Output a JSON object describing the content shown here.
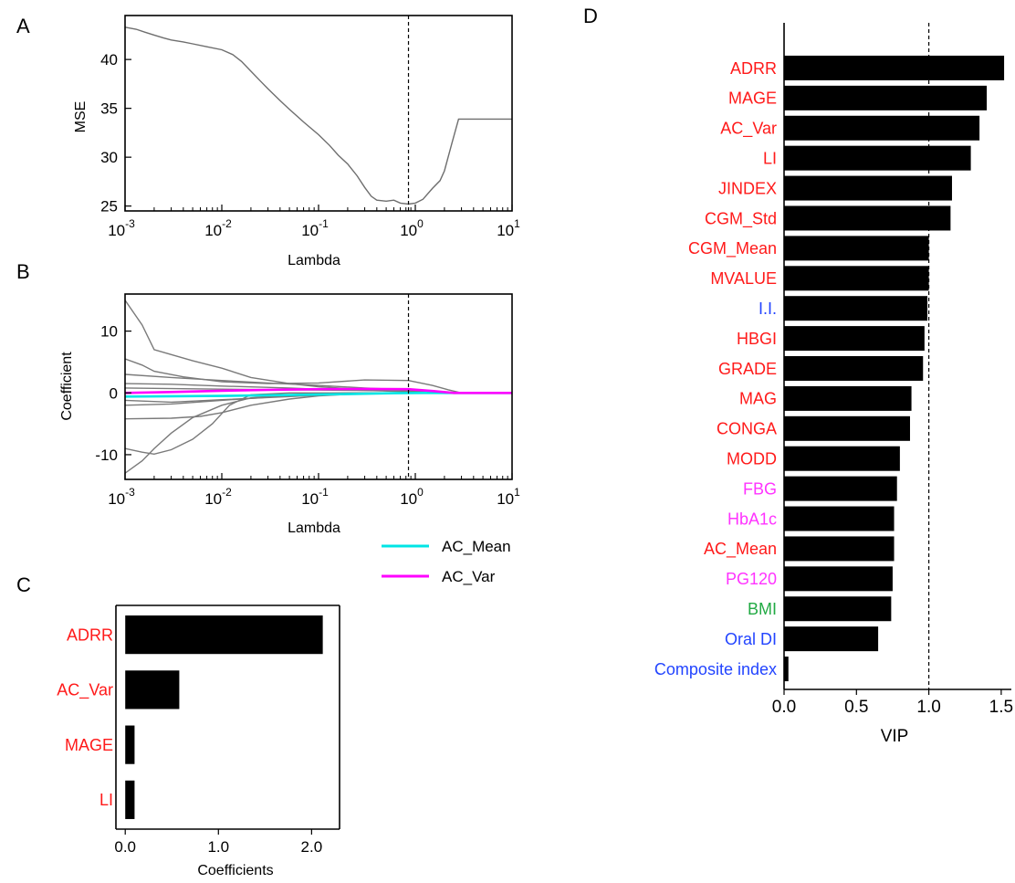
{
  "panels": {
    "A": {
      "letter": "A",
      "chart_data": {
        "type": "line",
        "xlabel": "Lambda",
        "ylabel": "MSE",
        "xscale": "log",
        "xlim": [
          0.001,
          10
        ],
        "ylim": [
          24.5,
          44.5
        ],
        "x_tick_exponents": [
          "-3",
          "-2",
          "-1",
          "0",
          "1"
        ],
        "y_ticks": [
          25,
          30,
          35,
          40
        ],
        "vline": 0.85,
        "series": [
          {
            "color": "#6e6e6e",
            "points": [
              [
                0.001,
                43.3
              ],
              [
                0.0013,
                43.1
              ],
              [
                0.0016,
                42.8
              ],
              [
                0.002,
                42.5
              ],
              [
                0.0025,
                42.2
              ],
              [
                0.003,
                42.0
              ],
              [
                0.004,
                41.8
              ],
              [
                0.005,
                41.6
              ],
              [
                0.007,
                41.3
              ],
              [
                0.01,
                41.0
              ],
              [
                0.013,
                40.5
              ],
              [
                0.016,
                39.8
              ],
              [
                0.02,
                38.8
              ],
              [
                0.025,
                37.8
              ],
              [
                0.03,
                37.0
              ],
              [
                0.04,
                35.8
              ],
              [
                0.05,
                34.9
              ],
              [
                0.07,
                33.6
              ],
              [
                0.1,
                32.3
              ],
              [
                0.13,
                31.2
              ],
              [
                0.16,
                30.2
              ],
              [
                0.2,
                29.3
              ],
              [
                0.25,
                28.1
              ],
              [
                0.3,
                26.9
              ],
              [
                0.35,
                26.0
              ],
              [
                0.4,
                25.6
              ],
              [
                0.5,
                25.5
              ],
              [
                0.6,
                25.6
              ],
              [
                0.7,
                25.3
              ],
              [
                0.85,
                25.2
              ],
              [
                1.0,
                25.3
              ],
              [
                1.2,
                25.7
              ],
              [
                1.5,
                26.8
              ],
              [
                1.8,
                27.6
              ],
              [
                2.0,
                28.6
              ],
              [
                2.4,
                31.5
              ],
              [
                2.8,
                33.9
              ],
              [
                3.5,
                33.9
              ],
              [
                5.0,
                33.9
              ],
              [
                10,
                33.9
              ]
            ]
          }
        ]
      }
    },
    "B": {
      "letter": "B",
      "chart_data": {
        "type": "line",
        "xlabel": "Lambda",
        "ylabel": "Coefficient",
        "xscale": "log",
        "xlim": [
          0.001,
          10
        ],
        "ylim": [
          -14,
          16
        ],
        "x_tick_exponents": [
          "-3",
          "-2",
          "-1",
          "0",
          "1"
        ],
        "y_ticks": [
          -10,
          0,
          10
        ],
        "vline": 0.85,
        "legend_position": "below-right",
        "series": [
          {
            "color": "#7a7a7a",
            "points": [
              [
                0.001,
                15
              ],
              [
                0.0015,
                11
              ],
              [
                0.002,
                7
              ],
              [
                0.003,
                6.2
              ],
              [
                0.005,
                5.2
              ],
              [
                0.01,
                4.0
              ],
              [
                0.02,
                2.5
              ],
              [
                0.05,
                1.5
              ],
              [
                0.1,
                1.0
              ],
              [
                0.3,
                0.5
              ],
              [
                0.85,
                0.2
              ],
              [
                2,
                0
              ],
              [
                10,
                0
              ]
            ]
          },
          {
            "color": "#7a7a7a",
            "points": [
              [
                0.001,
                -13
              ],
              [
                0.0015,
                -11
              ],
              [
                0.002,
                -9
              ],
              [
                0.003,
                -6.5
              ],
              [
                0.005,
                -4
              ],
              [
                0.01,
                -2
              ],
              [
                0.02,
                -0.8
              ],
              [
                0.05,
                -0.3
              ],
              [
                0.1,
                -0.1
              ],
              [
                0.2,
                0
              ],
              [
                10,
                0
              ]
            ]
          },
          {
            "color": "#7a7a7a",
            "points": [
              [
                0.001,
                -9
              ],
              [
                0.0015,
                -9.6
              ],
              [
                0.002,
                -9.9
              ],
              [
                0.003,
                -9.2
              ],
              [
                0.005,
                -7.5
              ],
              [
                0.008,
                -5
              ],
              [
                0.012,
                -2
              ],
              [
                0.02,
                -0.3
              ],
              [
                0.05,
                0
              ],
              [
                10,
                0
              ]
            ]
          },
          {
            "color": "#7a7a7a",
            "points": [
              [
                0.001,
                5.5
              ],
              [
                0.0015,
                4.5
              ],
              [
                0.002,
                3.5
              ],
              [
                0.004,
                2.6
              ],
              [
                0.01,
                1.8
              ],
              [
                0.03,
                1.5
              ],
              [
                0.1,
                1.6
              ],
              [
                0.3,
                2.1
              ],
              [
                0.85,
                2.0
              ],
              [
                1.5,
                1.2
              ],
              [
                2.2,
                0.5
              ],
              [
                3,
                0
              ],
              [
                10,
                0
              ]
            ]
          },
          {
            "color": "#7a7a7a",
            "points": [
              [
                0.001,
                3
              ],
              [
                0.003,
                2.5
              ],
              [
                0.01,
                2.0
              ],
              [
                0.03,
                1.6
              ],
              [
                0.1,
                1.2
              ],
              [
                0.3,
                0.8
              ],
              [
                0.85,
                0.5
              ],
              [
                1.5,
                0.1
              ],
              [
                2,
                0
              ],
              [
                10,
                0
              ]
            ]
          },
          {
            "color": "#7a7a7a",
            "points": [
              [
                0.001,
                -4.2
              ],
              [
                0.003,
                -4.1
              ],
              [
                0.006,
                -3.8
              ],
              [
                0.01,
                -3.2
              ],
              [
                0.02,
                -2.0
              ],
              [
                0.05,
                -1.0
              ],
              [
                0.1,
                -0.5
              ],
              [
                0.3,
                -0.1
              ],
              [
                0.5,
                0
              ],
              [
                10,
                0
              ]
            ]
          },
          {
            "color": "#7a7a7a",
            "points": [
              [
                0.001,
                1.5
              ],
              [
                0.003,
                1.4
              ],
              [
                0.01,
                1.1
              ],
              [
                0.05,
                0.8
              ],
              [
                0.1,
                0.6
              ],
              [
                0.3,
                0.4
              ],
              [
                0.85,
                0.2
              ],
              [
                2,
                0
              ],
              [
                10,
                0
              ]
            ]
          },
          {
            "color": "#7a7a7a",
            "points": [
              [
                0.001,
                -2.0
              ],
              [
                0.003,
                -1.8
              ],
              [
                0.01,
                -1.2
              ],
              [
                0.03,
                -0.7
              ],
              [
                0.1,
                -0.3
              ],
              [
                0.3,
                -0.1
              ],
              [
                0.6,
                0
              ],
              [
                10,
                0
              ]
            ]
          },
          {
            "color": "#7a7a7a",
            "points": [
              [
                0.001,
                0.8
              ],
              [
                0.01,
                0.6
              ],
              [
                0.05,
                0.5
              ],
              [
                0.3,
                0.4
              ],
              [
                0.85,
                0.3
              ],
              [
                2,
                0
              ],
              [
                10,
                0
              ]
            ]
          },
          {
            "color": "#7a7a7a",
            "points": [
              [
                0.001,
                -1.2
              ],
              [
                0.003,
                -1.5
              ],
              [
                0.01,
                -1.1
              ],
              [
                0.05,
                -0.6
              ],
              [
                0.2,
                -0.2
              ],
              [
                0.5,
                0
              ],
              [
                10,
                0
              ]
            ]
          },
          {
            "name": "AC_Mean",
            "color": "#00e5e5",
            "points": [
              [
                0.001,
                -0.6
              ],
              [
                0.01,
                -0.5
              ],
              [
                0.05,
                -0.35
              ],
              [
                0.2,
                -0.2
              ],
              [
                0.6,
                -0.05
              ],
              [
                1.2,
                0
              ],
              [
                10,
                0
              ]
            ]
          },
          {
            "name": "AC_Var",
            "color": "#ff00ff",
            "points": [
              [
                0.001,
                0.0
              ],
              [
                0.003,
                0.15
              ],
              [
                0.01,
                0.35
              ],
              [
                0.03,
                0.5
              ],
              [
                0.1,
                0.6
              ],
              [
                0.3,
                0.65
              ],
              [
                0.85,
                0.6
              ],
              [
                1.5,
                0.3
              ],
              [
                2.5,
                0
              ],
              [
                10,
                0
              ]
            ]
          }
        ],
        "legend": [
          {
            "label": "AC_Mean",
            "color": "#00e5e5"
          },
          {
            "label": "AC_Var",
            "color": "#ff00ff"
          }
        ]
      }
    },
    "C": {
      "letter": "C",
      "chart_data": {
        "type": "bar",
        "orientation": "horizontal",
        "xlabel": "Coefficients",
        "xlim": [
          -0.1,
          2.3
        ],
        "x_ticks": [
          "0.0",
          "1.0",
          "2.0"
        ],
        "bar_color": "#000000",
        "categories": [
          "ADRR",
          "AC_Var",
          "MAGE",
          "LI"
        ],
        "label_colors": [
          "#ff1a1a",
          "#ff1a1a",
          "#ff1a1a",
          "#ff1a1a"
        ],
        "values": [
          2.12,
          0.58,
          0.1,
          0.1
        ]
      }
    },
    "D": {
      "letter": "D",
      "chart_data": {
        "type": "bar",
        "orientation": "horizontal",
        "xlabel": "VIP",
        "xlim": [
          0,
          1.57
        ],
        "x_ticks": [
          "0.0",
          "0.5",
          "1.0",
          "1.5"
        ],
        "vline": 1.0,
        "bar_color": "#000000",
        "categories": [
          "ADRR",
          "MAGE",
          "AC_Var",
          "LI",
          "JINDEX",
          "CGM_Std",
          "CGM_Mean",
          "MVALUE",
          "I.I.",
          "HBGI",
          "GRADE",
          "MAG",
          "CONGA",
          "MODD",
          "FBG",
          "HbA1c",
          "AC_Mean",
          "PG120",
          "BMI",
          "Oral DI",
          "Composite index"
        ],
        "label_colors": [
          "#ff1a1a",
          "#ff1a1a",
          "#ff1a1a",
          "#ff1a1a",
          "#ff1a1a",
          "#ff1a1a",
          "#ff1a1a",
          "#ff1a1a",
          "#2244ff",
          "#ff1a1a",
          "#ff1a1a",
          "#ff1a1a",
          "#ff1a1a",
          "#ff1a1a",
          "#ff33ff",
          "#ff33ff",
          "#ff1a1a",
          "#ff33ff",
          "#22aa44",
          "#2244ff",
          "#2244ff"
        ],
        "values": [
          1.52,
          1.4,
          1.35,
          1.29,
          1.16,
          1.15,
          1.0,
          1.0,
          0.99,
          0.97,
          0.96,
          0.88,
          0.87,
          0.8,
          0.78,
          0.76,
          0.76,
          0.75,
          0.74,
          0.65,
          0.03
        ]
      }
    }
  }
}
